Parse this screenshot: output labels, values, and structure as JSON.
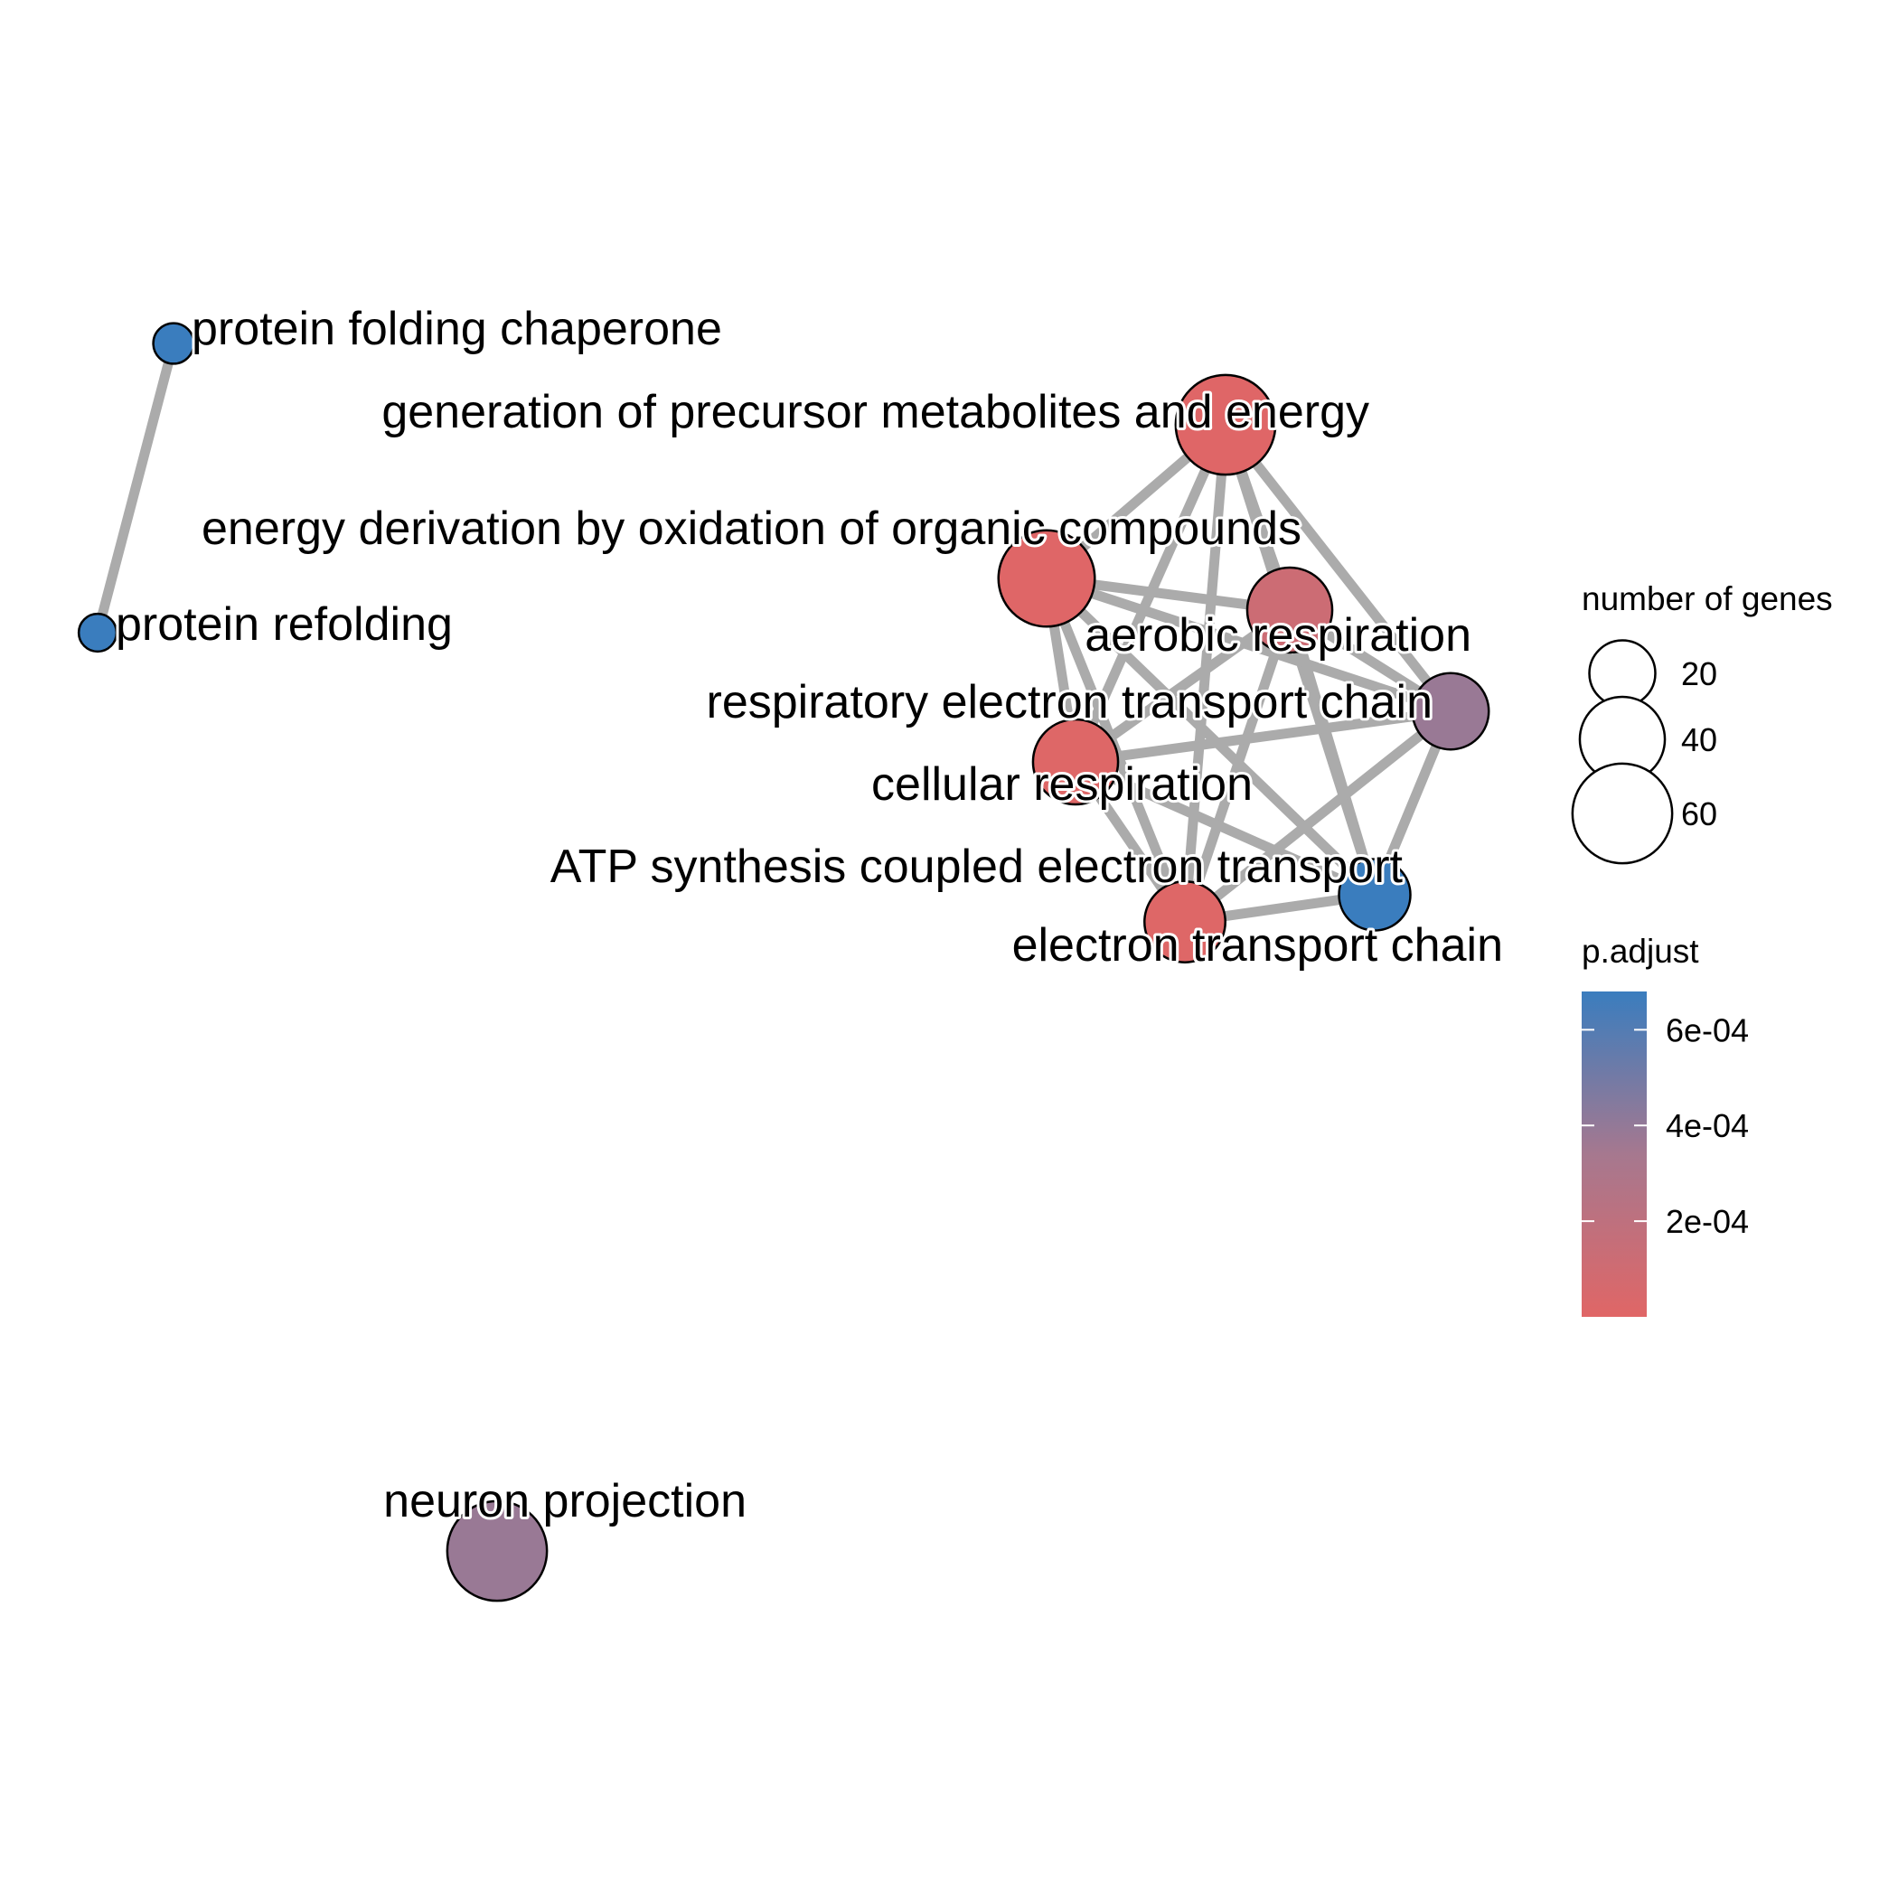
{
  "network": {
    "nodes": [
      {
        "id": "pfc",
        "label": "protein folding chaperone",
        "genes": 4,
        "p_adjust": 0.00068
      },
      {
        "id": "prf",
        "label": "protein refolding",
        "genes": 3,
        "p_adjust": 0.00068
      },
      {
        "id": "gen",
        "label": "generation of precursor metabolites and energy",
        "genes": 60,
        "p_adjust": 5e-06
      },
      {
        "id": "edo",
        "label": "energy derivation by oxidation of organic compounds",
        "genes": 55,
        "p_adjust": 5e-06
      },
      {
        "id": "aer",
        "label": "aerobic respiration",
        "genes": 40,
        "p_adjust": 0.00012
      },
      {
        "id": "retc",
        "label": "respiratory electron transport chain",
        "genes": 30,
        "p_adjust": 0.00038
      },
      {
        "id": "cr",
        "label": "cellular respiration",
        "genes": 40,
        "p_adjust": 1e-05
      },
      {
        "id": "atp",
        "label": "ATP synthesis coupled electron transport",
        "genes": 25,
        "p_adjust": 0.00068
      },
      {
        "id": "etc",
        "label": "electron transport chain",
        "genes": 35,
        "p_adjust": 1e-05
      },
      {
        "id": "np",
        "label": "neuron projection",
        "genes": 60,
        "p_adjust": 0.00038
      }
    ],
    "edges": [
      {
        "source": "pfc",
        "target": "prf"
      },
      {
        "source": "gen",
        "target": "edo"
      },
      {
        "source": "gen",
        "target": "aer"
      },
      {
        "source": "gen",
        "target": "retc"
      },
      {
        "source": "gen",
        "target": "cr"
      },
      {
        "source": "gen",
        "target": "atp"
      },
      {
        "source": "gen",
        "target": "etc"
      },
      {
        "source": "edo",
        "target": "aer"
      },
      {
        "source": "edo",
        "target": "retc"
      },
      {
        "source": "edo",
        "target": "cr"
      },
      {
        "source": "edo",
        "target": "atp"
      },
      {
        "source": "edo",
        "target": "etc"
      },
      {
        "source": "aer",
        "target": "retc"
      },
      {
        "source": "aer",
        "target": "cr"
      },
      {
        "source": "aer",
        "target": "atp"
      },
      {
        "source": "aer",
        "target": "etc"
      },
      {
        "source": "retc",
        "target": "cr"
      },
      {
        "source": "retc",
        "target": "atp"
      },
      {
        "source": "retc",
        "target": "etc"
      },
      {
        "source": "cr",
        "target": "atp"
      },
      {
        "source": "cr",
        "target": "etc"
      },
      {
        "source": "atp",
        "target": "etc"
      }
    ]
  },
  "legend_size": {
    "title": "number of genes",
    "entries": [
      {
        "label": "20",
        "value": 20
      },
      {
        "label": "40",
        "value": 40
      },
      {
        "label": "60",
        "value": 60
      }
    ]
  },
  "legend_color": {
    "title": "p.adjust",
    "ticks": [
      {
        "label": "6e-04",
        "value": 0.0006
      },
      {
        "label": "4e-04",
        "value": 0.0004
      },
      {
        "label": "2e-04",
        "value": 0.0002
      }
    ],
    "range": [
      0,
      0.00068
    ],
    "low_color": "#E06666",
    "high_color": "#3A7DBE"
  },
  "style": {
    "edge_color": "#ABABAB",
    "node_outline": "#000000"
  }
}
